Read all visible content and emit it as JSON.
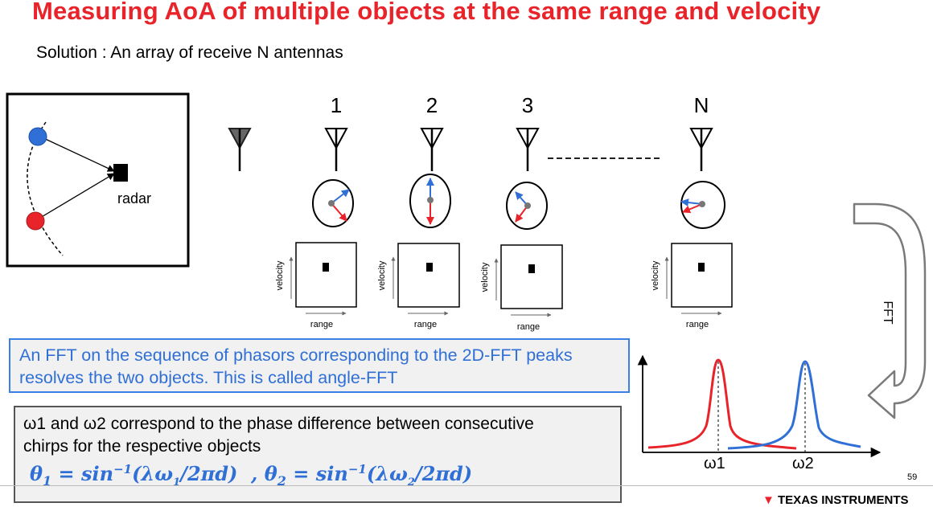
{
  "title": "Measuring  AoA of multiple objects at the same range and velocity",
  "subtitle": "Solution : An array of receive N antennas",
  "scene": {
    "radar_label": "radar"
  },
  "antennas": [
    {
      "label": "1"
    },
    {
      "label": "2"
    },
    {
      "label": "3"
    },
    {
      "label": "N"
    }
  ],
  "grid": {
    "xlabel": "range",
    "ylabel": "velocity"
  },
  "fft_arrow_label": "FFT",
  "info_box": {
    "text": "An FFT on the sequence of phasors corresponding to the 2D-FFT peaks resolves the two objects. This is called angle-FFT"
  },
  "note_box": {
    "line1": "ω1  and ω2 correspond to the phase difference between consecutive",
    "line2": "chirps for the respective objects"
  },
  "spectrum": {
    "peak1_label": "ω1",
    "peak2_label": "ω2"
  },
  "page_number": "59",
  "footer_logo": "TEXAS INSTRUMENTS",
  "colors": {
    "title": "#e8232a",
    "object1": "#e8232a",
    "object2": "#2f6fd6",
    "accent": "#3b80e6"
  }
}
